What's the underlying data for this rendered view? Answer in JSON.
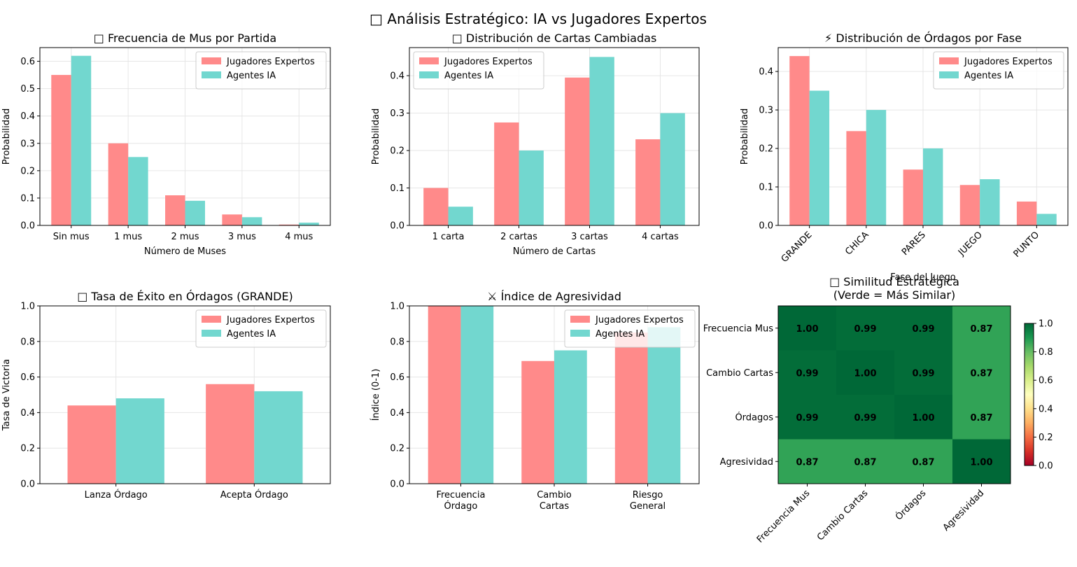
{
  "figure": {
    "suptitle": "□ Análisis Estratégico: IA vs Jugadores Expertos",
    "colors": {
      "experts": "#ff8a8a",
      "ai": "#72d7cf",
      "grid": "#e6e6e6"
    }
  },
  "chart_data": [
    {
      "id": "mus",
      "type": "bar",
      "title": "□ Frecuencia de Mus por Partida",
      "xlabel": "Número de Muses",
      "ylabel": "Probabilidad",
      "ylim": [
        0,
        0.65
      ],
      "yticks": [
        0.0,
        0.1,
        0.2,
        0.3,
        0.4,
        0.5,
        0.6
      ],
      "categories": [
        "Sin mus",
        "1 mus",
        "2 mus",
        "3 mus",
        "4 mus"
      ],
      "series": [
        {
          "name": "Jugadores Expertos",
          "values": [
            0.55,
            0.3,
            0.11,
            0.04,
            0.003
          ]
        },
        {
          "name": "Agentes IA",
          "values": [
            0.62,
            0.25,
            0.09,
            0.03,
            0.01
          ]
        }
      ],
      "legend": "top-right",
      "grid": true
    },
    {
      "id": "cartas",
      "type": "bar",
      "title": "□ Distribución de Cartas Cambiadas",
      "xlabel": "Número de Cartas",
      "ylabel": "Probabilidad",
      "ylim": [
        0,
        0.475
      ],
      "yticks": [
        0.0,
        0.1,
        0.2,
        0.3,
        0.4
      ],
      "categories": [
        "1 carta",
        "2 cartas",
        "3 cartas",
        "4 cartas"
      ],
      "series": [
        {
          "name": "Jugadores Expertos",
          "values": [
            0.1,
            0.275,
            0.395,
            0.23
          ]
        },
        {
          "name": "Agentes IA",
          "values": [
            0.05,
            0.2,
            0.45,
            0.3
          ]
        }
      ],
      "legend": "top-left",
      "grid": true
    },
    {
      "id": "ordagos",
      "type": "bar",
      "title": "⚡ Distribución de Órdagos por Fase",
      "xlabel": "Fase del Juego",
      "ylabel": "Probabilidad",
      "ylim": [
        0,
        0.462
      ],
      "yticks": [
        0.0,
        0.1,
        0.2,
        0.3,
        0.4
      ],
      "categories": [
        "GRANDE",
        "CHICA",
        "PARES",
        "JUEGO",
        "PUNTO"
      ],
      "rotate_xticks": true,
      "series": [
        {
          "name": "Jugadores Expertos",
          "values": [
            0.44,
            0.245,
            0.145,
            0.105,
            0.062
          ]
        },
        {
          "name": "Agentes IA",
          "values": [
            0.35,
            0.3,
            0.2,
            0.12,
            0.03
          ]
        }
      ],
      "legend": "top-right",
      "grid": true
    },
    {
      "id": "exito",
      "type": "bar",
      "title": "□ Tasa de Éxito en Órdagos (GRANDE)",
      "xlabel": "",
      "ylabel": "Tasa de Victoria",
      "ylim": [
        0,
        1.0
      ],
      "yticks": [
        0.0,
        0.2,
        0.4,
        0.6,
        0.8,
        1.0
      ],
      "categories": [
        "Lanza Órdago",
        "Acepta Órdago"
      ],
      "series": [
        {
          "name": "Jugadores Expertos",
          "values": [
            0.44,
            0.56
          ]
        },
        {
          "name": "Agentes IA",
          "values": [
            0.48,
            0.52
          ]
        }
      ],
      "legend": "top-right",
      "grid": true
    },
    {
      "id": "agresividad",
      "type": "bar",
      "title": "⚔ Índice de Agresividad",
      "xlabel": "",
      "ylabel": "Índice (0-1)",
      "ylim": [
        0,
        1.0
      ],
      "yticks": [
        0.0,
        0.2,
        0.4,
        0.6,
        0.8,
        1.0
      ],
      "categories": [
        "Frecuencia\nÓrdago",
        "Cambio\nCartas",
        "Riesgo\nGeneral"
      ],
      "series": [
        {
          "name": "Jugadores Expertos",
          "values": [
            1.0,
            0.69,
            0.85
          ]
        },
        {
          "name": "Agentes IA",
          "values": [
            1.0,
            0.75,
            0.88
          ]
        }
      ],
      "legend": "top-right",
      "grid": true
    },
    {
      "id": "similitud",
      "type": "heatmap",
      "title": "□ Similitud Estratégica\n(Verde = Más Similar)",
      "rows": [
        "Frecuencia Mus",
        "Cambio Cartas",
        "Órdagos",
        "Agresividad"
      ],
      "cols": [
        "Frecuencia Mus",
        "Cambio Cartas",
        "Órdagos",
        "Agresividad"
      ],
      "values": [
        [
          1.0,
          0.99,
          0.99,
          0.87
        ],
        [
          0.99,
          1.0,
          0.99,
          0.87
        ],
        [
          0.99,
          0.99,
          1.0,
          0.87
        ],
        [
          0.87,
          0.87,
          0.87,
          1.0
        ]
      ],
      "value_labels": [
        [
          "1.00",
          "0.99",
          "0.99",
          "0.87"
        ],
        [
          "0.99",
          "1.00",
          "0.99",
          "0.87"
        ],
        [
          "0.99",
          "0.99",
          "1.00",
          "0.87"
        ],
        [
          "0.87",
          "0.87",
          "0.87",
          "1.00"
        ]
      ],
      "colormap": "RdYlGn",
      "colorbar_range": [
        0.0,
        1.0
      ],
      "colorbar_ticks": [
        "0.0",
        "0.2",
        "0.4",
        "0.6",
        "0.8",
        "1.0"
      ]
    }
  ]
}
